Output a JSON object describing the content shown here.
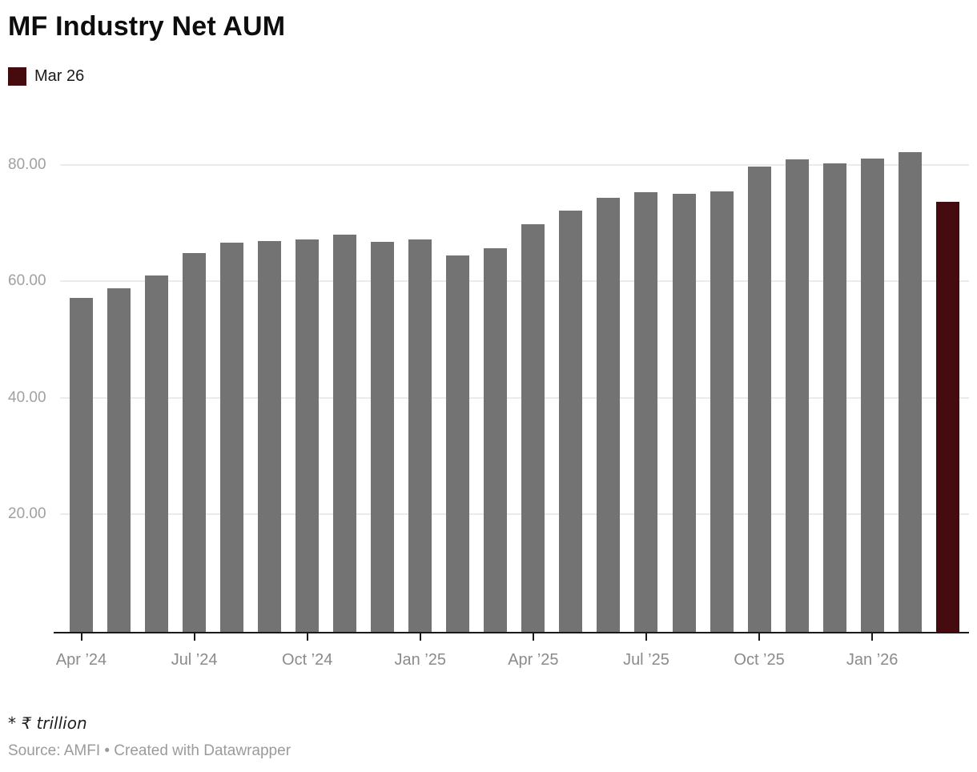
{
  "header": {
    "title": "MF Industry Net AUM"
  },
  "legend": {
    "items": [
      {
        "label": "Mar 26",
        "color": "#460b0f"
      }
    ]
  },
  "footer": {
    "note": "* ₹ trillion",
    "source": "Source: AMFI • Created with Datawrapper"
  },
  "chart_data": {
    "type": "bar",
    "title": "MF Industry Net AUM",
    "unit_note": "₹ trillion",
    "categories": [
      "Apr 2024",
      "May 2024",
      "Jun 2024",
      "Jul 2024",
      "Aug 2024",
      "Sep 2024",
      "Oct 2024",
      "Nov 2024",
      "Dec 2024",
      "Jan 2025",
      "Feb 2025",
      "Mar 2025",
      "Apr 2025",
      "May 2025",
      "Jun 2025",
      "Jul 2025",
      "Aug 2025",
      "Sep 2025",
      "Oct 2025",
      "Nov 2025",
      "Dec 2025",
      "Jan 2026",
      "Feb 2026",
      "Mar 2026"
    ],
    "values": [
      57.26,
      58.91,
      61.16,
      64.97,
      66.7,
      67.09,
      67.26,
      68.08,
      66.93,
      67.25,
      64.53,
      65.74,
      69.99,
      72.2,
      74.41,
      75.36,
      75.18,
      75.61,
      79.88,
      81.05,
      80.4,
      81.15,
      82.3,
      73.8
    ],
    "bar_color": "#737373",
    "highlight": {
      "index": 23,
      "label": "Mar 26",
      "color": "#460b0f"
    },
    "y_ticks": [
      "20.00",
      "40.00",
      "60.00",
      "80.00"
    ],
    "y_tick_values": [
      20,
      40,
      60,
      80
    ],
    "ylim": [
      0,
      88.6
    ],
    "x_ticks": [
      {
        "index": 0,
        "label": "Apr ’24"
      },
      {
        "index": 3,
        "label": "Jul ’24"
      },
      {
        "index": 6,
        "label": "Oct ’24"
      },
      {
        "index": 9,
        "label": "Jan ’25"
      },
      {
        "index": 12,
        "label": "Apr ’25"
      },
      {
        "index": 15,
        "label": "Jul ’25"
      },
      {
        "index": 18,
        "label": "Oct ’25"
      },
      {
        "index": 21,
        "label": "Jan ’26"
      }
    ],
    "grid": "horizontal",
    "legend_position": "top-left"
  }
}
